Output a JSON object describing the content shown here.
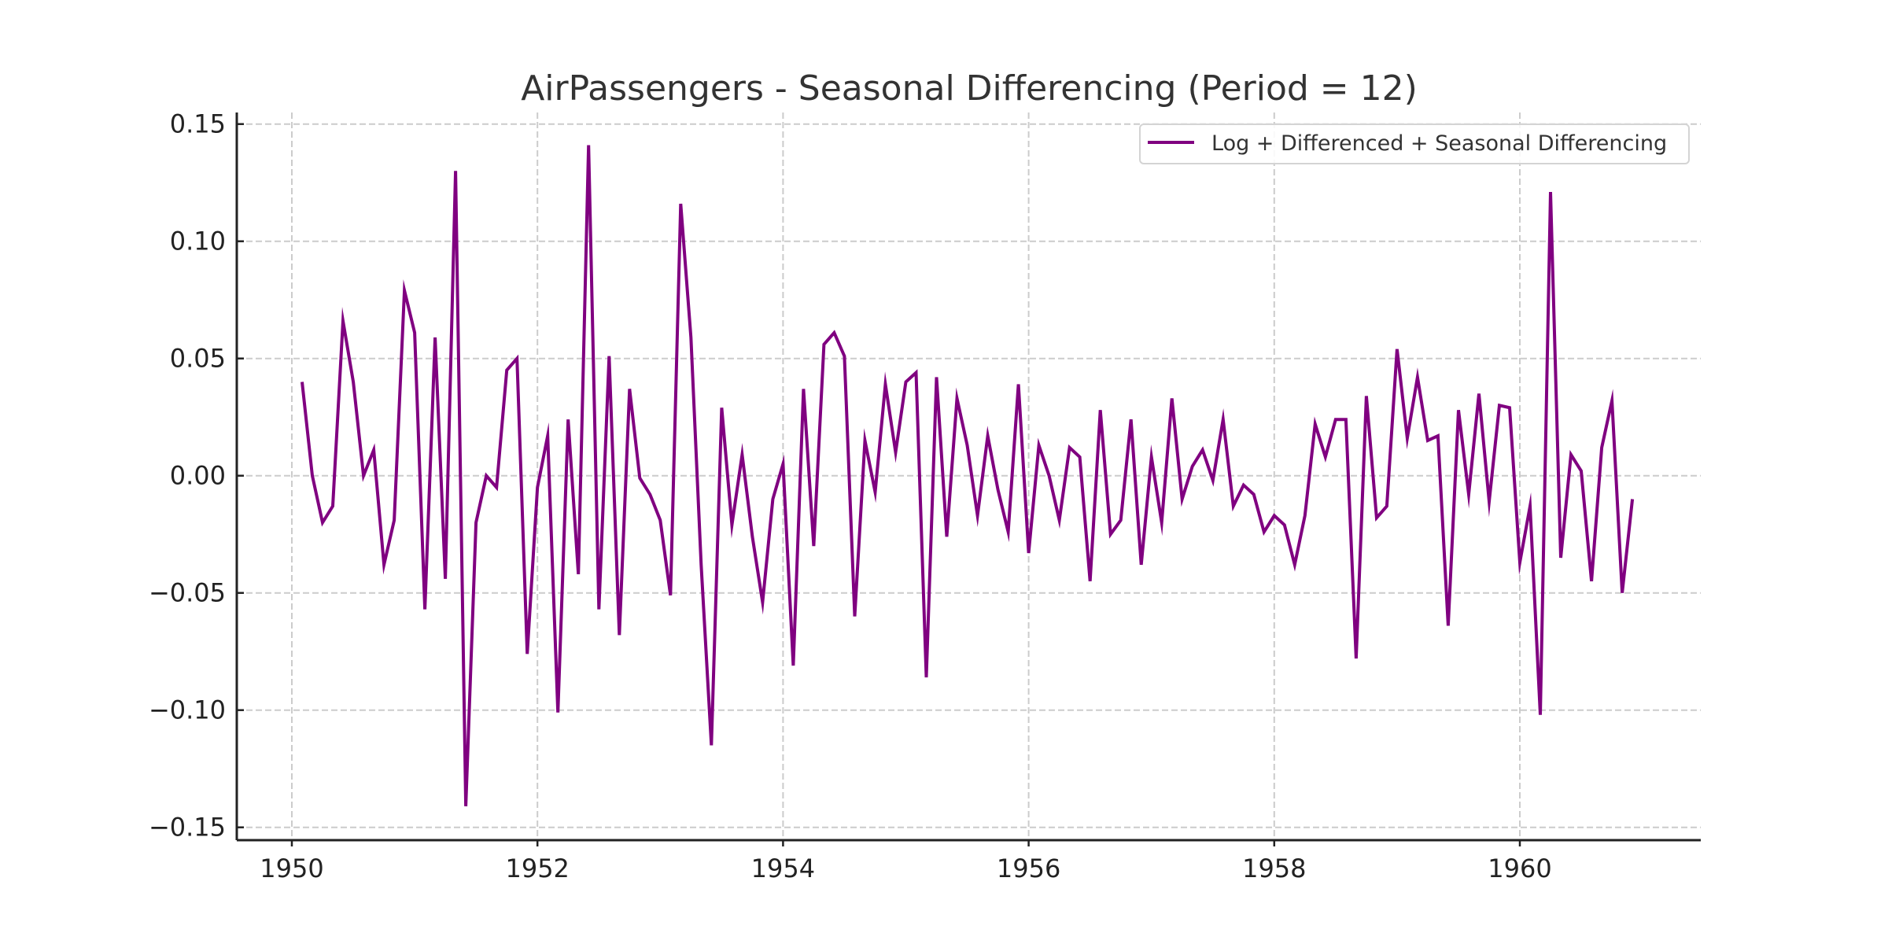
{
  "chart_data": {
    "type": "line",
    "title": "AirPassengers - Seasonal Differencing (Period = 12)",
    "xlabel": "",
    "ylabel": "",
    "xlim": [
      1949.72,
      1961.48
    ],
    "ylim": [
      -0.155,
      0.155
    ],
    "grid": true,
    "legend_position": "top-right",
    "x_ticks": [
      1950,
      1952,
      1954,
      1956,
      1958,
      1960
    ],
    "x_tick_labels": [
      "1950",
      "1952",
      "1954",
      "1956",
      "1958",
      "1960"
    ],
    "y_ticks": [
      0.15,
      0.1,
      0.05,
      0.0,
      -0.05,
      -0.1,
      -0.15
    ],
    "y_tick_labels": [
      "0.15",
      "0.10",
      "0.05",
      "0.00",
      "−0.05",
      "−0.10",
      "−0.15"
    ],
    "x_start": "1950-02",
    "x_step_months": 1,
    "series": [
      {
        "name": "Log + Differenced + Seasonal Differencing",
        "color": "#800080",
        "values": [
          0.04,
          0.0,
          -0.02,
          -0.013,
          0.066,
          0.04,
          0.0,
          0.011,
          -0.038,
          -0.019,
          0.079,
          0.061,
          -0.057,
          0.059,
          -0.044,
          0.13,
          -0.141,
          -0.02,
          0.0,
          -0.005,
          0.045,
          0.05,
          -0.076,
          -0.005,
          0.017,
          -0.101,
          0.024,
          -0.042,
          0.141,
          -0.057,
          0.051,
          -0.068,
          0.037,
          -0.001,
          -0.008,
          -0.019,
          -0.051,
          0.116,
          0.059,
          -0.038,
          -0.115,
          0.029,
          -0.021,
          0.009,
          -0.026,
          -0.054,
          -0.01,
          0.005,
          -0.081,
          0.037,
          -0.03,
          0.056,
          0.061,
          0.051,
          -0.06,
          0.015,
          -0.007,
          0.039,
          0.01,
          0.04,
          0.044,
          -0.086,
          0.042,
          -0.026,
          0.033,
          0.013,
          -0.017,
          0.017,
          -0.006,
          -0.024,
          0.039,
          -0.033,
          0.013,
          0.0,
          -0.019,
          0.012,
          0.008,
          -0.045,
          0.028,
          -0.025,
          -0.019,
          0.024,
          -0.038,
          0.008,
          -0.02,
          0.033,
          -0.01,
          0.004,
          0.011,
          -0.002,
          0.024,
          -0.013,
          -0.004,
          -0.008,
          -0.024,
          -0.017,
          -0.021,
          -0.038,
          -0.017,
          0.022,
          0.008,
          0.024,
          0.024,
          -0.078,
          0.034,
          -0.018,
          -0.013,
          0.054,
          0.016,
          0.042,
          0.015,
          0.017,
          -0.064,
          0.028,
          -0.008,
          0.035,
          -0.011,
          0.03,
          0.029,
          -0.037,
          -0.013,
          -0.102,
          0.121,
          -0.035,
          0.009,
          0.002,
          -0.045,
          0.012,
          0.032,
          -0.05,
          -0.01
        ]
      }
    ]
  }
}
